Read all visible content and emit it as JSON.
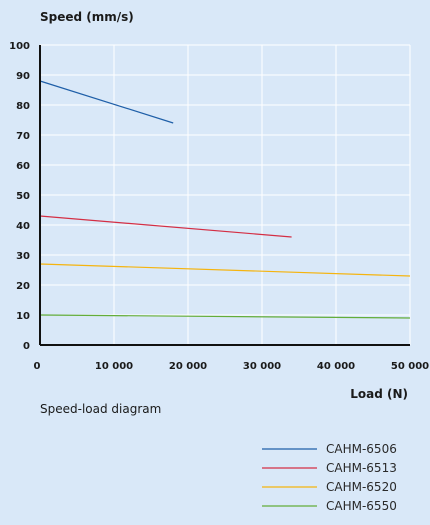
{
  "chart_data": {
    "type": "line",
    "ylabel": "Speed (mm/s)",
    "xlabel": "Load (N)",
    "caption": "Speed-load diagram",
    "xlim": [
      0,
      50000
    ],
    "ylim": [
      0,
      100
    ],
    "xticks": [
      {
        "value": 0,
        "label": "0"
      },
      {
        "value": 10000,
        "label": "10 000"
      },
      {
        "value": 20000,
        "label": "20 000"
      },
      {
        "value": 30000,
        "label": "30 000"
      },
      {
        "value": 40000,
        "label": "40 000"
      },
      {
        "value": 50000,
        "label": "50 000"
      }
    ],
    "yticks": [
      {
        "value": 0,
        "label": "0"
      },
      {
        "value": 10,
        "label": "10"
      },
      {
        "value": 20,
        "label": "20"
      },
      {
        "value": 30,
        "label": "30"
      },
      {
        "value": 40,
        "label": "40"
      },
      {
        "value": 50,
        "label": "50"
      },
      {
        "value": 60,
        "label": "60"
      },
      {
        "value": 70,
        "label": "70"
      },
      {
        "value": 80,
        "label": "80"
      },
      {
        "value": 90,
        "label": "90"
      },
      {
        "value": 100,
        "label": "100"
      }
    ],
    "grid": true,
    "legend_position": "bottom-right",
    "series": [
      {
        "name": "CAHM-6506",
        "color": "#1f5fa8",
        "x": [
          0,
          18000
        ],
        "y": [
          88,
          74
        ]
      },
      {
        "name": "CAHM-6513",
        "color": "#d42e44",
        "x": [
          0,
          34000
        ],
        "y": [
          43,
          36
        ]
      },
      {
        "name": "CAHM-6520",
        "color": "#f5b40f",
        "x": [
          0,
          50000
        ],
        "y": [
          27,
          23
        ]
      },
      {
        "name": "CAHM-6550",
        "color": "#63ad3a",
        "x": [
          0,
          50000
        ],
        "y": [
          10,
          9
        ]
      }
    ]
  }
}
